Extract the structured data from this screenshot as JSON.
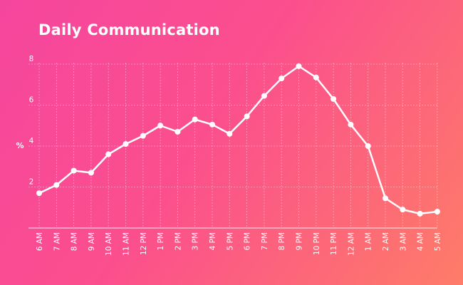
{
  "chart_data": {
    "type": "line",
    "title": "Daily Communication",
    "xlabel": "",
    "ylabel": "%",
    "categories": [
      "6 AM",
      "7 AM",
      "8 AM",
      "9 AM",
      "10 AM",
      "11 AM",
      "12 PM",
      "1 PM",
      "2 PM",
      "3 PM",
      "4 PM",
      "5 PM",
      "6 PM",
      "7 PM",
      "8 PM",
      "9 PM",
      "10 PM",
      "11 PM",
      "12 AM",
      "1 AM",
      "2 AM",
      "3 AM",
      "4 AM",
      "5 AM"
    ],
    "series": [
      {
        "values": [
          1.7,
          2.1,
          2.8,
          2.7,
          3.6,
          4.1,
          4.5,
          5.0,
          4.7,
          5.3,
          5.05,
          4.6,
          5.45,
          6.45,
          7.3,
          7.9,
          7.35,
          6.3,
          5.05,
          4.0,
          1.45,
          0.9,
          0.7,
          0.8
        ]
      }
    ],
    "yticks": [
      2,
      4,
      6,
      8
    ],
    "ylim": [
      0,
      8
    ],
    "grid": true,
    "colors": {
      "line": "#ffffff",
      "grid": "#ffffff",
      "background_start": "#f5469e",
      "background_end": "#fe7c68"
    }
  }
}
